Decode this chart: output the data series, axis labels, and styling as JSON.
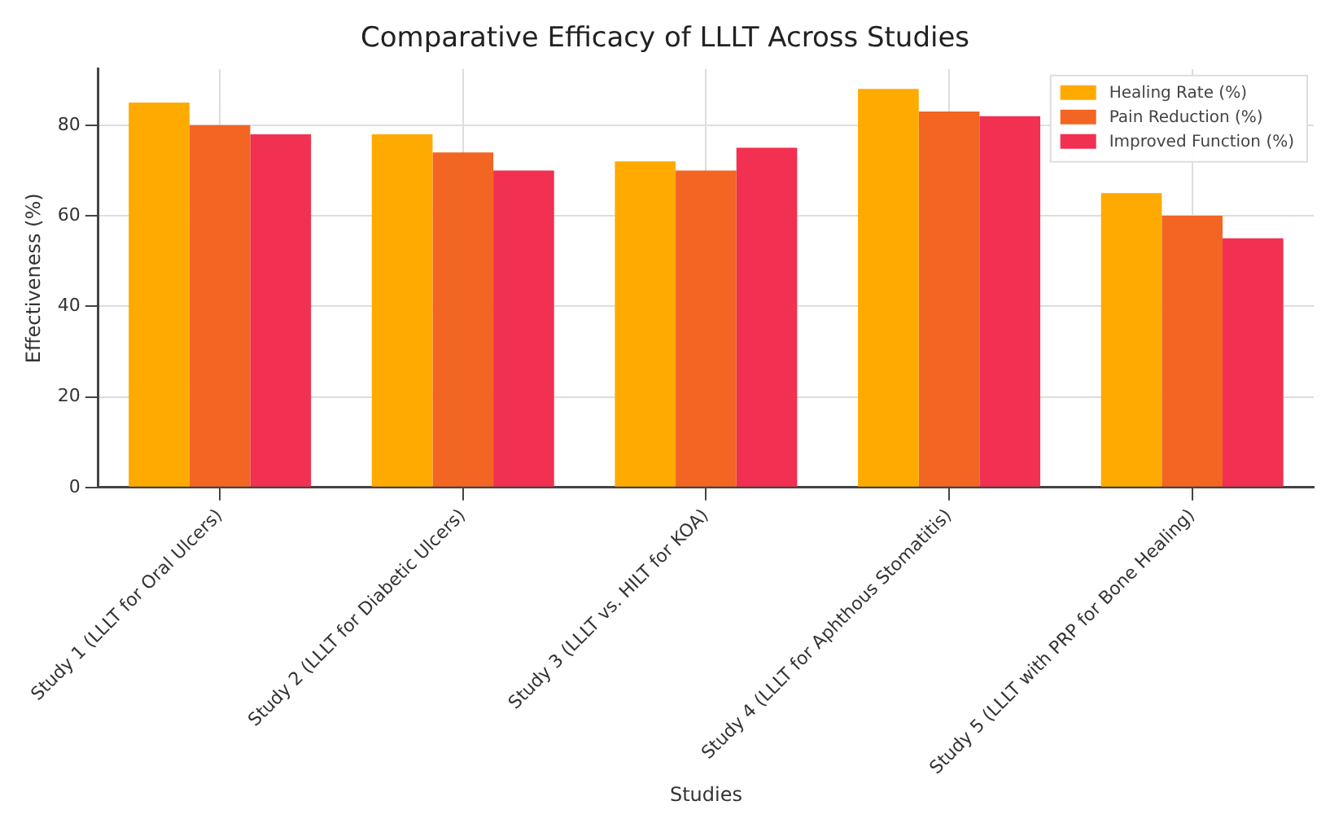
{
  "chart_data": {
    "type": "bar",
    "title": "Comparative Efficacy of LLLT Across Studies",
    "xlabel": "Studies",
    "ylabel": "Effectiveness (%)",
    "categories": [
      "Study 1 (LLLT for Oral Ulcers)",
      "Study 2 (LLLT for Diabetic Ulcers)",
      "Study 3 (LLLT vs. HILT for KOA)",
      "Study 4 (LLLT for Aphthous Stomatitis)",
      "Study 5 (LLLT with PRP for Bone Healing)"
    ],
    "series": [
      {
        "name": "Healing Rate (%)",
        "color": "#ffaa00",
        "values": [
          85,
          78,
          72,
          88,
          65
        ]
      },
      {
        "name": "Pain Reduction (%)",
        "color": "#f26522",
        "values": [
          80,
          74,
          70,
          83,
          60
        ]
      },
      {
        "name": "Improved Function (%)",
        "color": "#f23052",
        "values": [
          78,
          70,
          75,
          82,
          55
        ]
      }
    ],
    "ylim": [
      0,
      92.4
    ],
    "yticks": [
      0,
      20,
      40,
      60,
      80
    ],
    "grid": true,
    "legend": "top right"
  }
}
